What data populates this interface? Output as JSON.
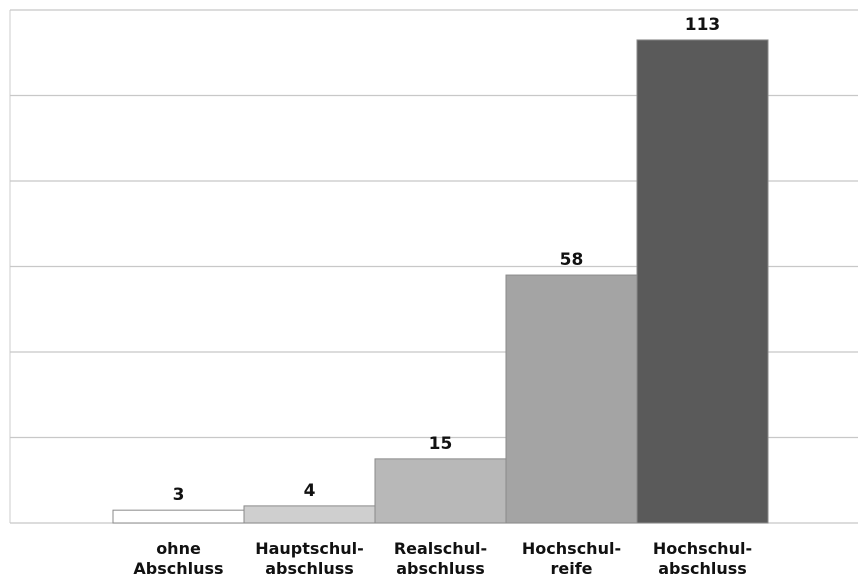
{
  "chart_data": {
    "type": "bar",
    "categories": [
      "ohne\nAbschluss",
      "Hauptschul-\nabschluss",
      "Realschul-\nabschluss",
      "Hochschul-\nreife",
      "Hochschul-\nabschluss"
    ],
    "values": [
      3,
      4,
      15,
      58,
      113
    ],
    "colors": [
      "#ffffff",
      "#cfcfcf",
      "#b8b8b8",
      "#a4a4a4",
      "#5a5a5a"
    ],
    "ylim": [
      0,
      120
    ],
    "yticks": [
      0,
      20,
      40,
      60,
      80,
      100,
      120
    ],
    "grid": true
  }
}
